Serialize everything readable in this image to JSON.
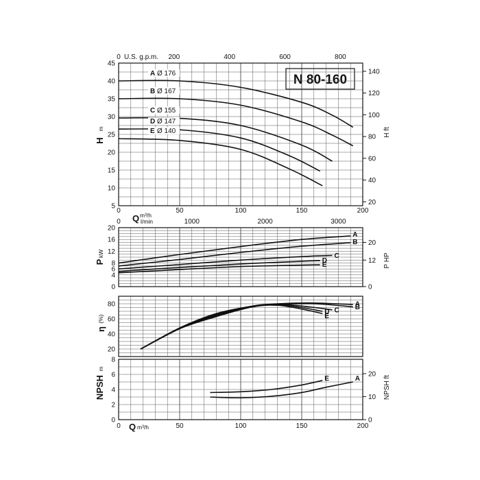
{
  "chart_data": {
    "title": "N 80-160",
    "x": {
      "label": "Q",
      "unit": "m³/h",
      "range": [
        0,
        200
      ],
      "ticks": [
        "0",
        "50",
        "100",
        "150",
        "200"
      ],
      "secondary_top": {
        "label": "U.S. g.p.m.",
        "ticks": [
          "0",
          "200",
          "400",
          "600",
          "800"
        ]
      },
      "secondary_lpm": {
        "label": "l/min",
        "ticks": [
          "0",
          "1000",
          "2000",
          "3000"
        ]
      }
    },
    "panels": [
      {
        "id": "head",
        "type": "line",
        "ylabel": "H",
        "yunit": "m",
        "ylim": [
          5,
          45
        ],
        "yticks": [
          "5",
          "10",
          "15",
          "20",
          "25",
          "30",
          "35",
          "40",
          "45"
        ],
        "y2label": "H ft",
        "y2ticks": [
          "20",
          "40",
          "60",
          "80",
          "100",
          "120",
          "140"
        ],
        "series": [
          {
            "name": "A",
            "diam_label": "Ø 176",
            "points": [
              [
                0,
                40.0
              ],
              [
                50,
                40.0
              ],
              [
                100,
                38.2
              ],
              [
                150,
                34.0
              ],
              [
                175,
                30.4
              ],
              [
                192,
                27.0
              ]
            ]
          },
          {
            "name": "B",
            "diam_label": "Ø 167",
            "points": [
              [
                0,
                35.0
              ],
              [
                50,
                35.0
              ],
              [
                100,
                33.2
              ],
              [
                150,
                28.5
              ],
              [
                175,
                24.8
              ],
              [
                192,
                21.8
              ]
            ]
          },
          {
            "name": "C",
            "diam_label": "Ø 155",
            "points": [
              [
                0,
                29.6
              ],
              [
                50,
                29.5
              ],
              [
                100,
                27.5
              ],
              [
                150,
                22.0
              ],
              [
                175,
                17.5
              ]
            ]
          },
          {
            "name": "D",
            "diam_label": "Ø 147",
            "points": [
              [
                0,
                26.5
              ],
              [
                50,
                26.3
              ],
              [
                100,
                24.0
              ],
              [
                140,
                19.0
              ],
              [
                165,
                14.7
              ]
            ]
          },
          {
            "name": "E",
            "diam_label": "Ø 140",
            "points": [
              [
                0,
                23.8
              ],
              [
                50,
                23.3
              ],
              [
                100,
                20.8
              ],
              [
                140,
                15.3
              ],
              [
                167,
                10.6
              ]
            ]
          }
        ]
      },
      {
        "id": "power",
        "type": "line",
        "ylabel": "P",
        "yunit": "kW",
        "ylim": [
          0,
          20
        ],
        "yticks": [
          "0",
          "4",
          "6",
          "8",
          "12",
          "16",
          "20"
        ],
        "y2label": "P HP",
        "y2ticks": [
          "0",
          "12",
          "20"
        ],
        "series": [
          {
            "name": "A",
            "points": [
              [
                0,
                8.0
              ],
              [
                50,
                10.9
              ],
              [
                100,
                13.6
              ],
              [
                150,
                16.0
              ],
              [
                190,
                17.2
              ]
            ]
          },
          {
            "name": "B",
            "points": [
              [
                0,
                7.0
              ],
              [
                50,
                9.2
              ],
              [
                100,
                11.6
              ],
              [
                150,
                13.7
              ],
              [
                190,
                14.9
              ]
            ]
          },
          {
            "name": "C",
            "points": [
              [
                0,
                6.0
              ],
              [
                50,
                7.5
              ],
              [
                100,
                9.0
              ],
              [
                150,
                10.2
              ],
              [
                175,
                10.6
              ]
            ]
          },
          {
            "name": "D",
            "points": [
              [
                0,
                5.2
              ],
              [
                50,
                6.5
              ],
              [
                100,
                7.7
              ],
              [
                150,
                8.6
              ],
              [
                165,
                8.8
              ]
            ]
          },
          {
            "name": "E",
            "points": [
              [
                0,
                4.7
              ],
              [
                50,
                5.8
              ],
              [
                100,
                6.8
              ],
              [
                150,
                7.3
              ],
              [
                165,
                7.4
              ]
            ]
          }
        ]
      },
      {
        "id": "efficiency",
        "type": "line",
        "ylabel": "η",
        "yunit": "(%)",
        "ylim": [
          10,
          90
        ],
        "yticks": [
          "20",
          "40",
          "60",
          "80"
        ],
        "series": [
          {
            "name": "A",
            "points": [
              [
                18,
                20
              ],
              [
                50,
                48
              ],
              [
                80,
                67
              ],
              [
                110,
                77
              ],
              [
                130,
                80
              ],
              [
                160,
                81
              ],
              [
                192,
                79
              ]
            ]
          },
          {
            "name": "B",
            "points": [
              [
                18,
                20
              ],
              [
                50,
                47
              ],
              [
                80,
                66
              ],
              [
                110,
                76
              ],
              [
                130,
                79
              ],
              [
                160,
                80
              ],
              [
                192,
                76
              ]
            ]
          },
          {
            "name": "C",
            "points": [
              [
                18,
                20
              ],
              [
                50,
                47
              ],
              [
                80,
                65
              ],
              [
                110,
                77
              ],
              [
                130,
                79
              ],
              [
                150,
                77
              ],
              [
                175,
                72
              ]
            ]
          },
          {
            "name": "D",
            "points": [
              [
                18,
                20
              ],
              [
                50,
                47
              ],
              [
                80,
                64
              ],
              [
                110,
                76
              ],
              [
                130,
                79
              ],
              [
                150,
                75
              ],
              [
                167,
                70
              ]
            ]
          },
          {
            "name": "E",
            "points": [
              [
                18,
                20
              ],
              [
                50,
                47
              ],
              [
                80,
                63
              ],
              [
                110,
                76
              ],
              [
                130,
                78
              ],
              [
                150,
                73
              ],
              [
                167,
                67
              ]
            ]
          }
        ]
      },
      {
        "id": "npsh",
        "type": "line",
        "ylabel": "NPSH",
        "yunit": "m",
        "ylim": [
          0,
          8
        ],
        "yticks": [
          "0",
          "2",
          "4",
          "6",
          "8"
        ],
        "y2label": "NPSH ft",
        "y2ticks": [
          "0",
          "10",
          "20"
        ],
        "series": [
          {
            "name": "A",
            "points": [
              [
                75,
                3.0
              ],
              [
                100,
                2.9
              ],
              [
                125,
                3.1
              ],
              [
                150,
                3.6
              ],
              [
                170,
                4.3
              ],
              [
                192,
                5.0
              ]
            ]
          },
          {
            "name": "E",
            "points": [
              [
                75,
                3.6
              ],
              [
                100,
                3.7
              ],
              [
                125,
                4.0
              ],
              [
                150,
                4.6
              ],
              [
                167,
                5.2
              ]
            ]
          }
        ]
      }
    ]
  }
}
